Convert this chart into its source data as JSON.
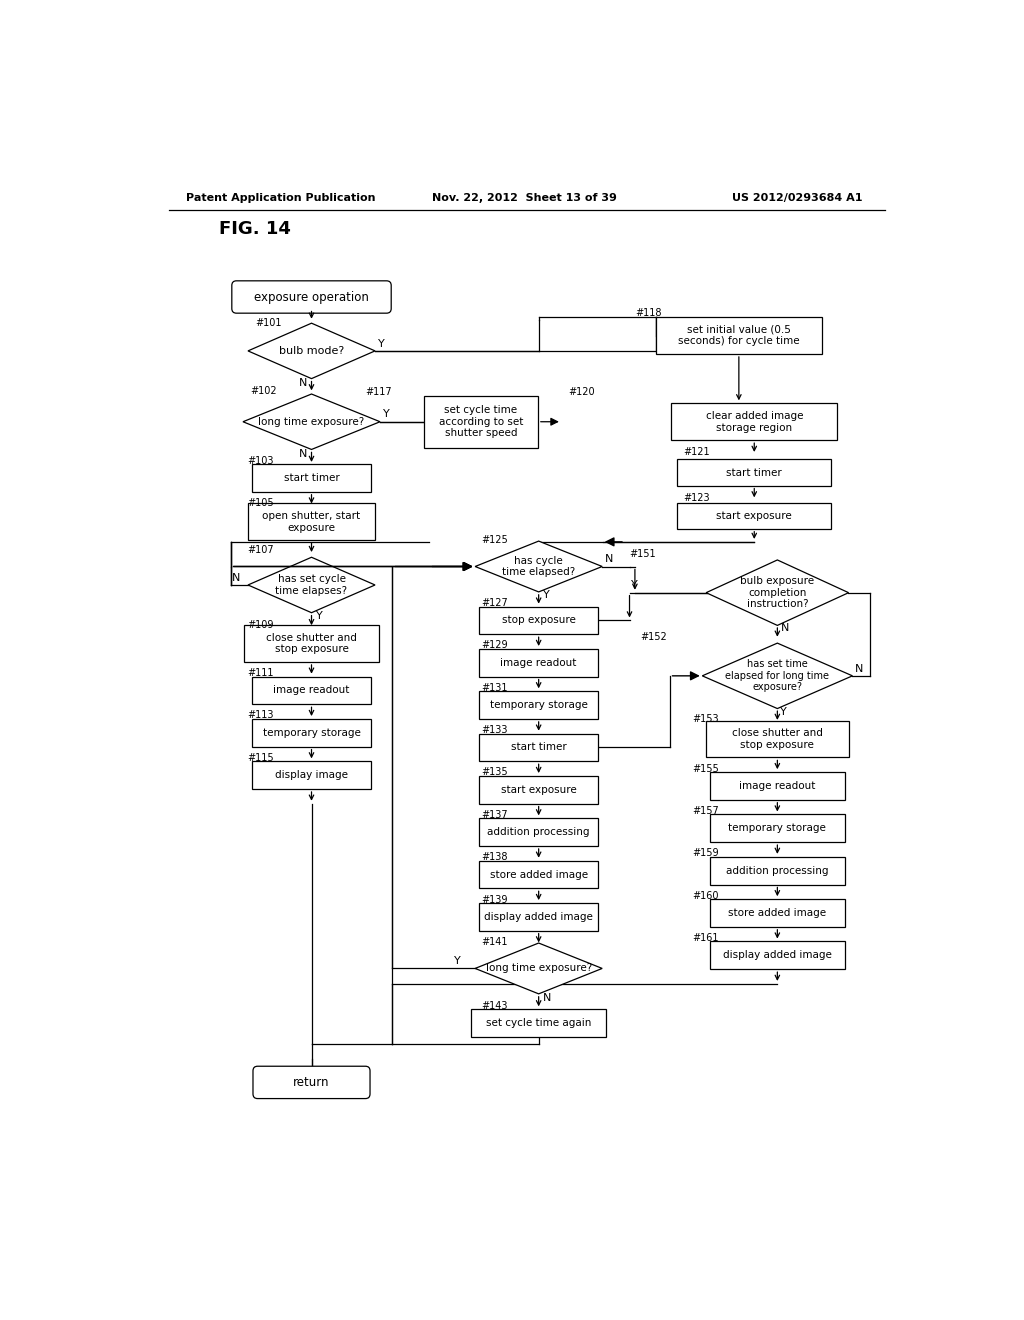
{
  "header_left": "Patent Application Publication",
  "header_center": "Nov. 22, 2012  Sheet 13 of 39",
  "header_right": "US 2012/0293684 A1",
  "title": "FIG. 14",
  "bg_color": "#ffffff"
}
